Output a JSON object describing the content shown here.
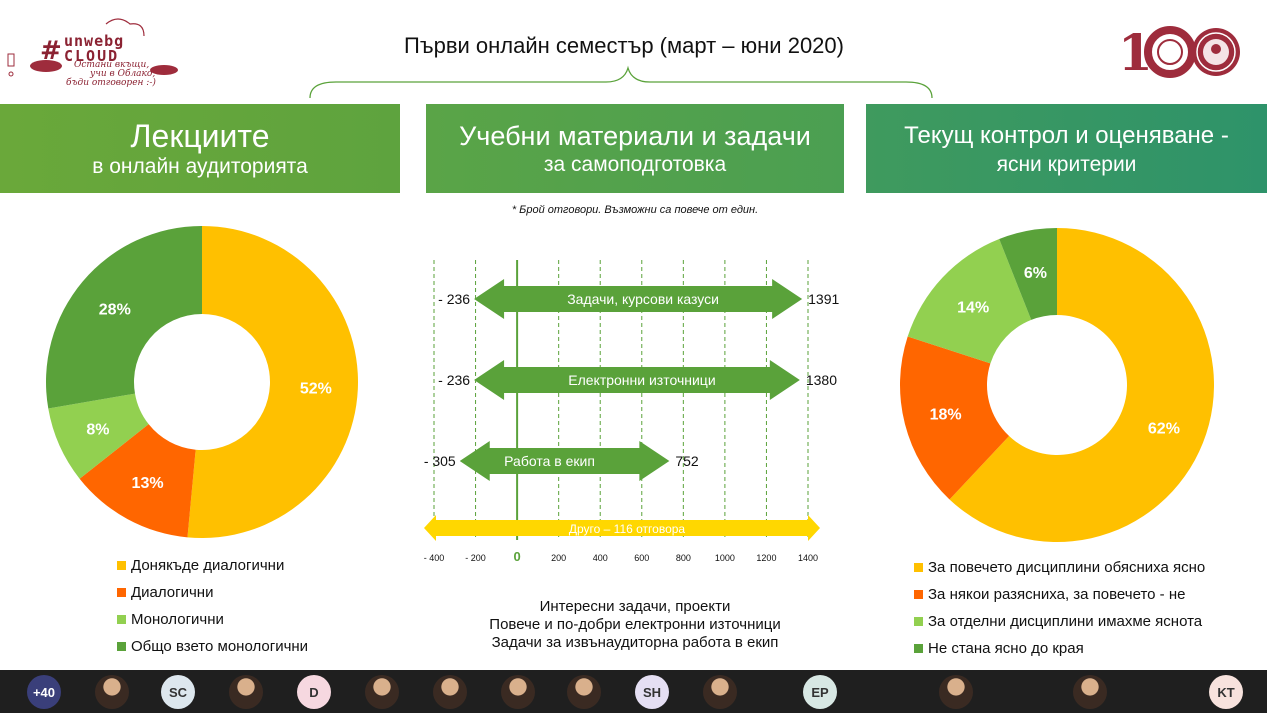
{
  "logo": {
    "hash": "#",
    "word_top": "unwebg",
    "word_bottom": "CLOUD",
    "tagline_1": "Остани вкъщи,",
    "tagline_2": "учи в Облако,",
    "tagline_3": "бъди отговорен :-)"
  },
  "header": {
    "title": "Първи онлайн семестър (март – юни 2020)"
  },
  "anniversary_logo": {
    "text": "100"
  },
  "sections": {
    "lectures": {
      "line1": "Лекциите",
      "line2": "в онлайн аудиторията"
    },
    "materials": {
      "line1": "Учебни материали и задачи",
      "line2": "за самоподготовка"
    },
    "control": {
      "line1": "Текущ контрол и оценяване -",
      "line2": "ясни критерии"
    }
  },
  "footnote": "*  Брой отговори. Възможни са повече  от един.",
  "chart_data": [
    {
      "type": "pie",
      "title": "",
      "slices": [
        {
          "label": "Донякъде диалогични",
          "value": 52,
          "color": "#ffc000"
        },
        {
          "label": "Диалогични",
          "value": 13,
          "color": "#ff6600"
        },
        {
          "label": "Монологични",
          "value": 8,
          "color": "#92d050"
        },
        {
          "label": "Общо взето монологични",
          "value": 28,
          "color": "#5aa23a"
        }
      ],
      "data_labels": [
        "52%",
        "13%",
        "8%",
        "28%"
      ],
      "legend_position": "bottom"
    },
    {
      "type": "bar",
      "title": "",
      "categories": [
        "Задачи, курсови казуси",
        "Електронни източници",
        "Работа в екип",
        "Друго – 116 отговора"
      ],
      "series": [
        {
          "values_negative": [
            -236,
            -236,
            -305,
            -400
          ],
          "values_positive": [
            1391,
            1380,
            752,
            1400
          ]
        }
      ],
      "end_labels_left": [
        "- 236",
        "- 236",
        "- 305"
      ],
      "end_labels_right": [
        "1391",
        "1380",
        "752"
      ],
      "bar_colors": [
        "#5aa23a",
        "#5aa23a",
        "#5aa23a",
        "#ffd700"
      ],
      "x_ticks": [
        -400,
        -200,
        0,
        200,
        400,
        600,
        800,
        1000,
        1200,
        1400
      ],
      "x_tick_labels": [
        "- 400",
        "- 200",
        "0",
        "200",
        "400",
        "600",
        "800",
        "1000",
        "1200",
        "1400"
      ],
      "xlim": [
        -400,
        1400
      ],
      "grid": true
    },
    {
      "type": "pie",
      "title": "",
      "slices": [
        {
          "label": "За повечето дисциплини обясниха ясно",
          "value": 62,
          "color": "#ffc000"
        },
        {
          "label": "За някои разясниха, за повечето - не",
          "value": 18,
          "color": "#ff6600"
        },
        {
          "label": "За отделни дисциплини имахме яснота",
          "value": 14,
          "color": "#92d050"
        },
        {
          "label": "Не стана ясно до края",
          "value": 6,
          "color": "#5aa23a"
        }
      ],
      "data_labels": [
        "62%",
        "18%",
        "14%",
        "6%"
      ],
      "legend_position": "bottom"
    }
  ],
  "notes": [
    "Интересни задачи, проекти",
    "Повече и по-добри електронни източници",
    "Задачи за извънаудиторна работа в екип"
  ],
  "participants": [
    {
      "label": "+40",
      "bg": "#3a3f7a",
      "fg": "#ffffff",
      "photo": false
    },
    {
      "label": "",
      "bg": "",
      "fg": "",
      "photo": true
    },
    {
      "label": "SC",
      "bg": "#dde7ee",
      "fg": "#333333",
      "photo": false
    },
    {
      "label": "",
      "bg": "",
      "fg": "",
      "photo": true
    },
    {
      "label": "D",
      "bg": "#f6d8e0",
      "fg": "#333333",
      "photo": false
    },
    {
      "label": "",
      "bg": "",
      "fg": "",
      "photo": true
    },
    {
      "label": "",
      "bg": "",
      "fg": "",
      "photo": true
    },
    {
      "label": "",
      "bg": "",
      "fg": "",
      "photo": true
    },
    {
      "label": "",
      "bg": "",
      "fg": "",
      "photo": true
    },
    {
      "label": "SH",
      "bg": "#e5dff3",
      "fg": "#333333",
      "photo": false
    },
    {
      "label": "",
      "bg": "",
      "fg": "",
      "photo": true
    },
    {
      "label": "EP",
      "bg": "#d8e8e4",
      "fg": "#333333",
      "photo": false
    },
    {
      "label": "",
      "bg": "",
      "fg": "",
      "photo": true
    },
    {
      "label": "",
      "bg": "",
      "fg": "",
      "photo": true
    },
    {
      "label": "KT",
      "bg": "#f7e2dd",
      "fg": "#333333",
      "photo": false
    }
  ]
}
